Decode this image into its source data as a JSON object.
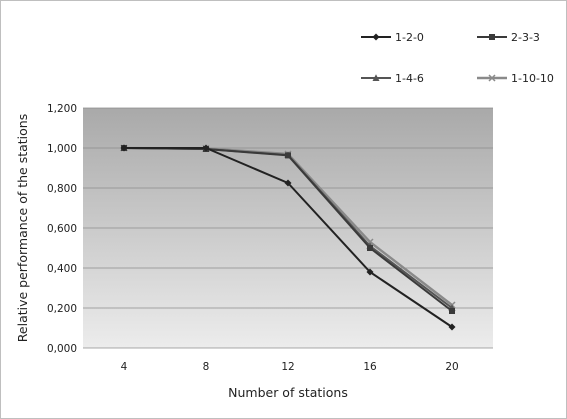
{
  "chart_data": {
    "type": "line",
    "title": "",
    "xlabel": "Number of stations",
    "ylabel": "Relative performance of the stations",
    "categories": [
      "4",
      "8",
      "12",
      "16",
      "20"
    ],
    "ylim": [
      0,
      1.2
    ],
    "yticks": [
      "0,000",
      "0,200",
      "0,400",
      "0,600",
      "0,800",
      "1,000",
      "1,200"
    ],
    "grid": true,
    "legend_position": "top-right",
    "series": [
      {
        "name": "1-2-0",
        "values": [
          1.0,
          1.0,
          0.825,
          0.38,
          0.105
        ],
        "color": "#222222",
        "marker": "diamond"
      },
      {
        "name": "2-3-3",
        "values": [
          1.0,
          0.995,
          0.963,
          0.5,
          0.185
        ],
        "color": "#3a3a3a",
        "marker": "square"
      },
      {
        "name": "1-4-6",
        "values": [
          1.0,
          0.995,
          0.965,
          0.51,
          0.2
        ],
        "color": "#555555",
        "marker": "triangle"
      },
      {
        "name": "1-10-10",
        "values": [
          1.0,
          0.998,
          0.97,
          0.53,
          0.215
        ],
        "color": "#8a8a8a",
        "marker": "x"
      }
    ]
  }
}
